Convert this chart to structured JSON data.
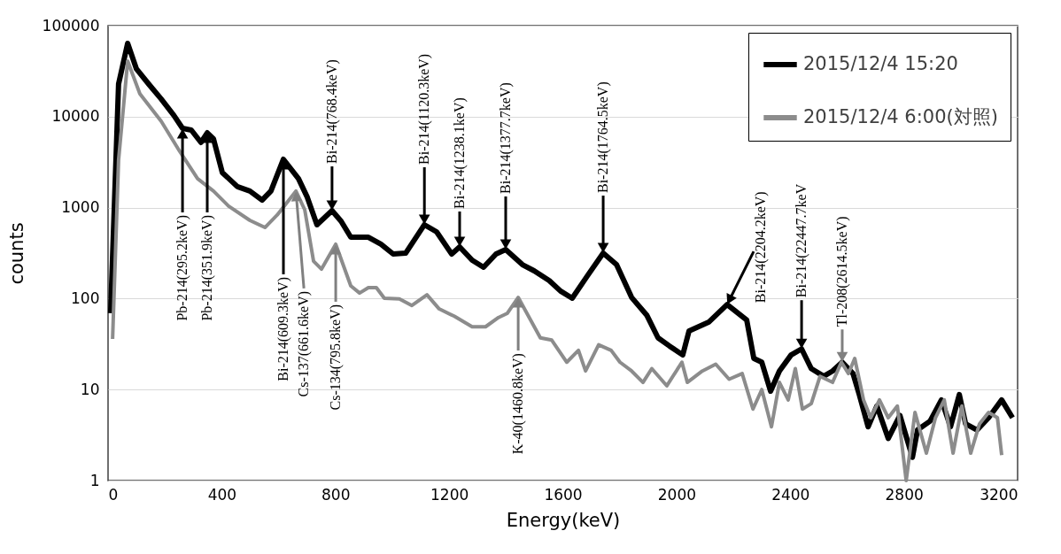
{
  "chart_data": {
    "type": "line",
    "xlabel": "Energy(keV)",
    "ylabel": "counts",
    "log": "y",
    "grid": "y",
    "legend": "top right",
    "xlim": [
      0,
      3200
    ],
    "xticks": [
      0,
      400,
      800,
      1200,
      1600,
      2000,
      2400,
      2800,
      3200
    ],
    "ylim": [
      1,
      100000
    ],
    "yticks": [
      1,
      10,
      100,
      1000,
      10000,
      100000
    ],
    "series": [
      {
        "name": "2015/12/4 15:20",
        "color": "#000000",
        "x": [
          9,
          37,
          69,
          100,
          143,
          187,
          231,
          262,
          293,
          327,
          349,
          371,
          402,
          455,
          499,
          542,
          573,
          617,
          670,
          701,
          735,
          788,
          820,
          854,
          916,
          960,
          1003,
          1047,
          1113,
          1156,
          1209,
          1237,
          1281,
          1321,
          1365,
          1399,
          1458,
          1499,
          1552,
          1592,
          1633,
          1686,
          1742,
          1789,
          1842,
          1895,
          1935,
          1976,
          2022,
          2044,
          2113,
          2178,
          2247,
          2272,
          2300,
          2331,
          2362,
          2403,
          2440,
          2474,
          2518,
          2549,
          2583,
          2621,
          2643,
          2674,
          2705,
          2745,
          2786,
          2830,
          2848,
          2892,
          2932,
          2964,
          2995,
          3017,
          3057,
          3098,
          3144,
          3182
        ],
        "values": [
          69,
          22800,
          64000,
          33400,
          22800,
          15600,
          10400,
          7440,
          7110,
          5200,
          6650,
          5690,
          2430,
          1700,
          1520,
          1210,
          1520,
          3400,
          2080,
          1300,
          648,
          927,
          708,
          473,
          473,
          396,
          309,
          316,
          648,
          541,
          309,
          370,
          264,
          221,
          309,
          346,
          236,
          202,
          158,
          121,
          101,
          177,
          316,
          236,
          103,
          66,
          37,
          30,
          24,
          44,
          55,
          86,
          58,
          22,
          20,
          9.6,
          16,
          24,
          28,
          17,
          14,
          16,
          20,
          15,
          8.8,
          3.9,
          6.6,
          2.9,
          5.2,
          1.8,
          3.6,
          4.5,
          7.7,
          3.9,
          8.8,
          4.2,
          3.6,
          4.9,
          7.7,
          4.9
        ]
      },
      {
        "name": "2015/12/4 6:00(対照)",
        "color": "#8c8c8c",
        "x": [
          16,
          37,
          69,
          112,
          187,
          252,
          315,
          371,
          424,
          499,
          552,
          595,
          661,
          692,
          723,
          751,
          801,
          854,
          885,
          916,
          944,
          972,
          1025,
          1069,
          1122,
          1165,
          1218,
          1281,
          1328,
          1374,
          1405,
          1443,
          1477,
          1521,
          1561,
          1614,
          1655,
          1680,
          1726,
          1770,
          1801,
          1842,
          1882,
          1913,
          1966,
          2019,
          2038,
          2091,
          2138,
          2185,
          2231,
          2269,
          2300,
          2334,
          2362,
          2393,
          2418,
          2443,
          2474,
          2505,
          2549,
          2580,
          2605,
          2627,
          2658,
          2683,
          2714,
          2745,
          2777,
          2808,
          2839,
          2879,
          2911,
          2942,
          2973,
          3004,
          3035,
          3066,
          3098,
          3129,
          3144
        ],
        "values": [
          36,
          3320,
          40800,
          17800,
          8900,
          4160,
          2080,
          1520,
          1040,
          724,
          605,
          829,
          1520,
          948,
          258,
          211,
          396,
          138,
          115,
          132,
          132,
          101,
          99,
          84,
          110,
          77,
          64,
          49,
          49,
          62,
          69,
          103,
          66,
          37,
          35,
          20,
          27,
          16,
          31,
          27,
          20,
          16,
          12,
          17,
          11,
          20,
          12,
          16,
          19,
          13,
          15,
          6.1,
          10,
          3.9,
          12,
          7.7,
          17,
          6.1,
          7.0,
          14,
          12,
          20,
          15,
          22,
          7.7,
          4.9,
          7.7,
          4.9,
          6.6,
          1.0,
          5.6,
          2.0,
          4.9,
          7.7,
          2.0,
          6.6,
          2.0,
          4.2,
          5.6,
          4.9,
          1.9
        ]
      }
    ],
    "annotations": [
      {
        "text": "Pb-214(295.2keV)",
        "x": 262,
        "y": 7440
      },
      {
        "text": "Pb-214(351.9keV)",
        "x": 349,
        "y": 6650
      },
      {
        "text": "Bi-214(609.3keV)",
        "x": 617,
        "y": 3400
      },
      {
        "text": "Cs-137(661.6keV)",
        "x": 661,
        "y": 1520
      },
      {
        "text": "Bi-214(768.4keV)",
        "x": 788,
        "y": 927
      },
      {
        "text": "Cs-134(795.8keV)",
        "x": 801,
        "y": 396
      },
      {
        "text": "Bi-214(1120.3keV)",
        "x": 1113,
        "y": 648
      },
      {
        "text": "Bi-214(1238.1keV)",
        "x": 1237,
        "y": 370
      },
      {
        "text": "Bi-214(1377.7keV)",
        "x": 1399,
        "y": 346
      },
      {
        "text": "K-40(1460.8keV)",
        "x": 1443,
        "y": 103
      },
      {
        "text": "Bi-214(1764.5keV)",
        "x": 1742,
        "y": 316
      },
      {
        "text": "Bi-214(2204.2keV)",
        "x": 2178,
        "y": 86
      },
      {
        "text": "Bi-214(22447.7keV",
        "x": 2440,
        "y": 28
      },
      {
        "text": "Tl-208(2614.5keV)",
        "x": 2583,
        "y": 20
      }
    ]
  }
}
